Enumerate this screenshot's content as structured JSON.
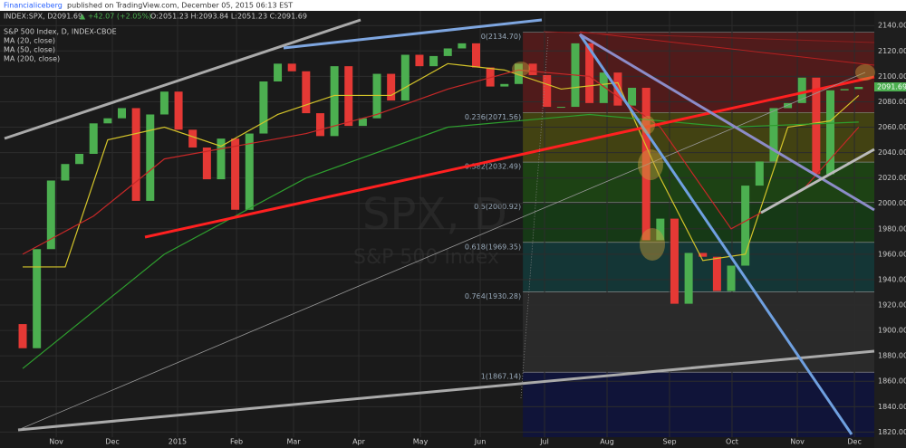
{
  "chart_data": {
    "type": "candlestick",
    "header": {
      "publisher": "Financialiceberg",
      "published": "published on TradingView.com, December 05, 2015 06:13 EST",
      "symbol": "INDEX:SPX, D",
      "last": "2091.69",
      "change": "▲ +42.07 (+2.05%)",
      "ohlc": "O:2051.23 H:2093.84 L:2051.23 C:2091.69"
    },
    "title": "S&P 500 Index, D, INDEX-CBOE",
    "watermark": "SPX, D",
    "watermark_sub": "S&P 500 Index",
    "xlim": [
      -1.6,
      60.1
    ],
    "xticks": [
      {
        "value": 2.37,
        "label": "Nov"
      },
      {
        "value": 6.33,
        "label": "Dec"
      },
      {
        "value": 10.93,
        "label": "2015"
      },
      {
        "value": 15.09,
        "label": "Feb"
      },
      {
        "value": 19.12,
        "label": "Mar"
      },
      {
        "value": 23.72,
        "label": "Apr"
      },
      {
        "value": 28.07,
        "label": "May"
      },
      {
        "value": 32.29,
        "label": "Jun"
      },
      {
        "value": 36.83,
        "label": "Jul"
      },
      {
        "value": 41.24,
        "label": "Aug"
      },
      {
        "value": 45.65,
        "label": "Sep"
      },
      {
        "value": 50.06,
        "label": "Oct"
      },
      {
        "value": 54.67,
        "label": "Nov"
      },
      {
        "value": 58.7,
        "label": "Dec"
      }
    ],
    "ylim": [
      1816,
      2148
    ],
    "yticks": [
      {
        "value": 1820,
        "label": "1820.00"
      },
      {
        "value": 1840,
        "label": "1840.00"
      },
      {
        "value": 1860,
        "label": "1860.00"
      },
      {
        "value": 1880,
        "label": "1880.00"
      },
      {
        "value": 1900,
        "label": "1900.00"
      },
      {
        "value": 1920,
        "label": "1920.00"
      },
      {
        "value": 1940,
        "label": "1940.00"
      },
      {
        "value": 1960,
        "label": "1960.00"
      },
      {
        "value": 1980,
        "label": "1980.00"
      },
      {
        "value": 2000,
        "label": "2000.00"
      },
      {
        "value": 2020,
        "label": "2020.00"
      },
      {
        "value": 2040,
        "label": "2040.00"
      },
      {
        "value": 2060,
        "label": "2060.00"
      },
      {
        "value": 2080,
        "label": "2080.00"
      },
      {
        "value": 2100,
        "label": "2100.00"
      },
      {
        "value": 2120,
        "label": "2120.00"
      },
      {
        "value": 2140,
        "label": "2140.00"
      }
    ],
    "grid": true,
    "last_price": 2091.69,
    "up_color": "#4caf50",
    "down_color": "#e53935",
    "candles": {
      "x": [
        0,
        1,
        2,
        3,
        4,
        5,
        6,
        7,
        8,
        9,
        10,
        11,
        12,
        13,
        14,
        15,
        16,
        17,
        18,
        19,
        20,
        21,
        22,
        23,
        24,
        25,
        26,
        27,
        28,
        29,
        30,
        31,
        32,
        33,
        34,
        35,
        36,
        37,
        38,
        39,
        40,
        41,
        42,
        43,
        44,
        45,
        46,
        47,
        48,
        49,
        50,
        51,
        52,
        53,
        54,
        55,
        56,
        57,
        58,
        59
      ],
      "open": [
        1905,
        1886,
        1964,
        2018,
        2031,
        2039,
        2063,
        2067,
        2075,
        2002,
        2070,
        2088,
        2058,
        2044,
        2019,
        2051,
        1995,
        2055,
        2096,
        2110,
        2104,
        2071,
        2053,
        2108,
        2061,
        2067,
        2102,
        2081,
        2117,
        2108,
        2116,
        2122,
        2126,
        2107,
        2092,
        2094,
        2110,
        2101,
        2076,
        2076,
        2126,
        2079,
        2103,
        2077,
        2091,
        1971,
        1988,
        1921,
        1961,
        1958,
        1931,
        1951,
        2014,
        2033,
        2075,
        2079,
        2099,
        2023,
        2089,
        2090
      ],
      "close": [
        1886,
        1964,
        2018,
        2031,
        2039,
        2063,
        2067,
        2075,
        2002,
        2070,
        2088,
        2058,
        2044,
        2019,
        2051,
        1995,
        2055,
        2096,
        2110,
        2104,
        2071,
        2053,
        2108,
        2061,
        2067,
        2102,
        2081,
        2117,
        2108,
        2116,
        2122,
        2126,
        2107,
        2092,
        2094,
        2110,
        2101,
        2076,
        2076,
        2126,
        2079,
        2103,
        2077,
        2091,
        1971,
        1988,
        1921,
        1961,
        1958,
        1931,
        1951,
        2014,
        2033,
        2075,
        2079,
        2099,
        2023,
        2089,
        2090,
        2091.69
      ]
    },
    "ma": [
      {
        "name": "MA (20, close)",
        "color": "#d4c42a",
        "x": [
          0,
          3,
          6,
          10,
          14,
          18,
          22,
          26,
          30,
          34,
          38,
          42,
          45,
          48,
          51,
          54,
          57,
          59
        ],
        "values": [
          1950,
          1950,
          2050,
          2060,
          2045,
          2070,
          2085,
          2085,
          2110,
          2105,
          2090,
          2095,
          2020,
          1955,
          1960,
          2060,
          2065,
          2085
        ]
      },
      {
        "name": "MA (50, close)",
        "color": "#c62828",
        "x": [
          0,
          5,
          10,
          15,
          20,
          25,
          30,
          35,
          40,
          45,
          50,
          55,
          59
        ],
        "values": [
          1960,
          1990,
          2035,
          2045,
          2055,
          2070,
          2090,
          2105,
          2100,
          2060,
          1980,
          2010,
          2060
        ]
      },
      {
        "name": "MA (200, close)",
        "color": "#2e9e2e",
        "x": [
          0,
          10,
          20,
          30,
          40,
          50,
          59
        ],
        "values": [
          1870,
          1960,
          2020,
          2060,
          2070,
          2060,
          2064
        ]
      }
    ],
    "fib": {
      "x_start": 35.3,
      "levels": [
        {
          "value": 2134.7,
          "label": "0(2134.70)"
        },
        {
          "value": 2071.56,
          "label": "0.236(2071.56)"
        },
        {
          "value": 2032.49,
          "label": "0.382(2032.49)"
        },
        {
          "value": 2000.92,
          "label": "0.5(2000.92)"
        },
        {
          "value": 1969.35,
          "label": "0.618(1969.35)"
        },
        {
          "value": 1930.28,
          "label": "0.764(1930.28)"
        },
        {
          "value": 1867.14,
          "label": "1(1867.14)"
        }
      ],
      "colors": [
        "#5a1c1c",
        "#4a4a12",
        "#1f4a14",
        "#163f16",
        "#143c3c",
        "#2e2e2e",
        "#0f1440"
      ]
    }
  }
}
